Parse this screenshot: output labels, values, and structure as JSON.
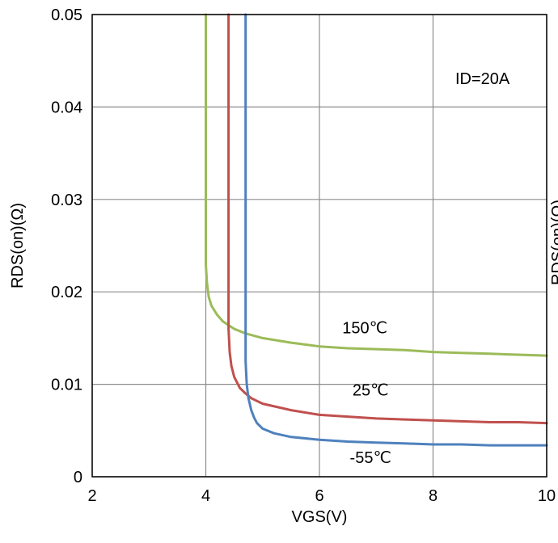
{
  "chart_data": {
    "type": "line",
    "title": "",
    "xlabel": "VGS(V)",
    "ylabel": "RDS(on)(Ω)",
    "clipped_side_label": "RDS(on)(Ω)",
    "xlim": [
      2,
      10
    ],
    "ylim": [
      0,
      0.05
    ],
    "x_ticks": [
      "2",
      "4",
      "6",
      "8",
      "10"
    ],
    "y_ticks": [
      "0",
      "0.01",
      "0.02",
      "0.03",
      "0.04",
      "0.05"
    ],
    "grid": true,
    "annotation": "ID=20A",
    "series": [
      {
        "name": "150℃",
        "color": "#9bbb59",
        "x": [
          4.0,
          4.0,
          4.02,
          4.05,
          4.1,
          4.2,
          4.3,
          4.5,
          4.7,
          5.0,
          5.5,
          6.0,
          6.5,
          7.0,
          7.5,
          8.0,
          8.5,
          9.0,
          9.5,
          10.0
        ],
        "y": [
          0.05,
          0.023,
          0.021,
          0.0195,
          0.0185,
          0.0175,
          0.0168,
          0.016,
          0.0155,
          0.015,
          0.0145,
          0.0141,
          0.0139,
          0.0138,
          0.0137,
          0.0135,
          0.0134,
          0.0133,
          0.0132,
          0.0131
        ]
      },
      {
        "name": "25℃",
        "color": "#c0504d",
        "x": [
          4.4,
          4.4,
          4.42,
          4.45,
          4.5,
          4.55,
          4.6,
          4.7,
          4.8,
          5.0,
          5.5,
          6.0,
          6.5,
          7.0,
          7.5,
          8.0,
          8.5,
          9.0,
          9.5,
          10.0
        ],
        "y": [
          0.05,
          0.016,
          0.0135,
          0.012,
          0.0108,
          0.0102,
          0.0096,
          0.009,
          0.0085,
          0.0079,
          0.0072,
          0.0067,
          0.0065,
          0.0063,
          0.0062,
          0.0061,
          0.006,
          0.0059,
          0.0059,
          0.0058
        ]
      },
      {
        "name": "-55℃",
        "color": "#4f81bd",
        "x": [
          4.7,
          4.7,
          4.72,
          4.75,
          4.8,
          4.85,
          4.9,
          5.0,
          5.2,
          5.5,
          6.0,
          6.5,
          7.0,
          7.5,
          8.0,
          8.5,
          9.0,
          9.5,
          10.0
        ],
        "y": [
          0.05,
          0.0125,
          0.01,
          0.0085,
          0.0072,
          0.0064,
          0.0058,
          0.0052,
          0.0047,
          0.0043,
          0.004,
          0.0038,
          0.0037,
          0.0036,
          0.0035,
          0.0035,
          0.0034,
          0.0034,
          0.0034
        ]
      }
    ],
    "series_labels": [
      {
        "text": "150℃",
        "x": 6.8,
        "y": 0.0155
      },
      {
        "text": "25℃",
        "x": 6.9,
        "y": 0.0088
      },
      {
        "text": "-55℃",
        "x": 6.9,
        "y": 0.0015
      }
    ]
  }
}
